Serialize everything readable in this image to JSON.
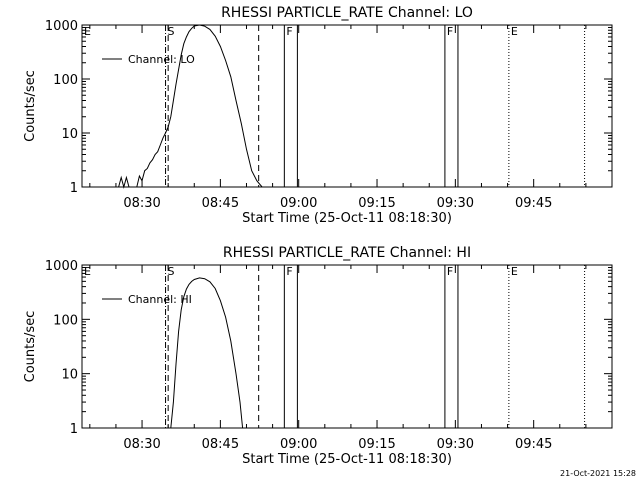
{
  "footer": {
    "timestamp": "21-Oct-2021 15:28"
  },
  "chart_data": [
    {
      "type": "line",
      "title": "RHESSI PARTICLE_RATE Channel: LO",
      "xlabel": "Start Time (25-Oct-11 08:18:30)",
      "ylabel": "Counts/sec",
      "yscale": "log",
      "xlim": [
        "08:18:30",
        "10:00:00"
      ],
      "ylim": [
        1,
        1000
      ],
      "x_tick_labels": [
        "08:30",
        "08:45",
        "09:00",
        "09:15",
        "09:30",
        "09:45"
      ],
      "y_tick_labels": [
        "1",
        "10",
        "100",
        "1000"
      ],
      "legend": {
        "position": "top-left",
        "entries": [
          "Channel: LO"
        ]
      },
      "series": [
        {
          "name": "Channel: LO",
          "x": [
            "08:25:30",
            "08:26:00",
            "08:26:30",
            "08:27:00",
            "08:27:30",
            "08:29:00",
            "08:29:30",
            "08:30:00",
            "08:30:30",
            "08:31:00",
            "08:31:30",
            "08:32:00",
            "08:32:30",
            "08:33:00",
            "08:33:30",
            "08:34:00",
            "08:34:30",
            "08:35:00",
            "08:35:30",
            "08:36:00",
            "08:36:30",
            "08:37:00",
            "08:37:30",
            "08:38:00",
            "08:38:30",
            "08:39:00",
            "08:39:30",
            "08:40:00",
            "08:41:00",
            "08:42:00",
            "08:43:00",
            "08:44:00",
            "08:45:00",
            "08:46:00",
            "08:47:00",
            "08:48:00",
            "08:49:00",
            "08:50:00",
            "08:51:00",
            "08:52:00",
            "08:53:00"
          ],
          "values": [
            1,
            1.5,
            1,
            1.5,
            1,
            1,
            1.6,
            1.3,
            2,
            2.2,
            2.8,
            3.2,
            4,
            4.5,
            6,
            8,
            10,
            13,
            20,
            40,
            80,
            150,
            280,
            450,
            600,
            750,
            870,
            960,
            1000,
            950,
            830,
            620,
            400,
            220,
            110,
            40,
            15,
            5,
            2,
            1.3,
            1
          ]
        }
      ],
      "markers": [
        {
          "label": "E",
          "x": "08:18:30",
          "style": "dotted"
        },
        {
          "label": "S",
          "x": "08:34:30",
          "style": "dash-dot"
        },
        {
          "label": "",
          "x": "08:35:00",
          "style": "dashed"
        },
        {
          "label": "",
          "x": "08:52:20",
          "style": "dashed"
        },
        {
          "label": "F",
          "x": "08:57:15",
          "style": "solid"
        },
        {
          "label": "",
          "x": "08:59:45",
          "style": "solid"
        },
        {
          "label": "F",
          "x": "09:28:00",
          "style": "solid"
        },
        {
          "label": "",
          "x": "09:30:30",
          "style": "solid"
        },
        {
          "label": "E",
          "x": "09:40:15",
          "style": "dotted"
        },
        {
          "label": "",
          "x": "09:54:45",
          "style": "dotted"
        }
      ]
    },
    {
      "type": "line",
      "title": "RHESSI PARTICLE_RATE Channel: HI",
      "xlabel": "Start Time (25-Oct-11 08:18:30)",
      "ylabel": "Counts/sec",
      "yscale": "log",
      "xlim": [
        "08:18:30",
        "10:00:00"
      ],
      "ylim": [
        1,
        1000
      ],
      "x_tick_labels": [
        "08:30",
        "08:45",
        "09:00",
        "09:15",
        "09:30",
        "09:45"
      ],
      "y_tick_labels": [
        "1",
        "10",
        "100",
        "1000"
      ],
      "legend": {
        "position": "top-left",
        "entries": [
          "Channel: HI"
        ]
      },
      "series": [
        {
          "name": "Channel: HI",
          "x": [
            "08:35:30",
            "08:36:00",
            "08:36:30",
            "08:37:00",
            "08:37:30",
            "08:38:00",
            "08:38:30",
            "08:39:00",
            "08:39:30",
            "08:40:00",
            "08:41:00",
            "08:42:00",
            "08:43:00",
            "08:44:00",
            "08:45:00",
            "08:46:00",
            "08:47:00",
            "08:48:00",
            "08:48:45",
            "08:49:15"
          ],
          "values": [
            1,
            3,
            15,
            60,
            150,
            260,
            360,
            440,
            500,
            540,
            580,
            560,
            490,
            370,
            220,
            110,
            40,
            10,
            3,
            1
          ]
        }
      ],
      "markers": [
        {
          "label": "E",
          "x": "08:18:30",
          "style": "dotted"
        },
        {
          "label": "S",
          "x": "08:34:30",
          "style": "dash-dot"
        },
        {
          "label": "",
          "x": "08:35:00",
          "style": "dashed"
        },
        {
          "label": "",
          "x": "08:52:20",
          "style": "dashed"
        },
        {
          "label": "F",
          "x": "08:57:15",
          "style": "solid"
        },
        {
          "label": "",
          "x": "08:59:45",
          "style": "solid"
        },
        {
          "label": "F",
          "x": "09:28:00",
          "style": "solid"
        },
        {
          "label": "",
          "x": "09:30:30",
          "style": "solid"
        },
        {
          "label": "E",
          "x": "09:40:15",
          "style": "dotted"
        },
        {
          "label": "",
          "x": "09:54:45",
          "style": "dotted"
        }
      ]
    }
  ]
}
